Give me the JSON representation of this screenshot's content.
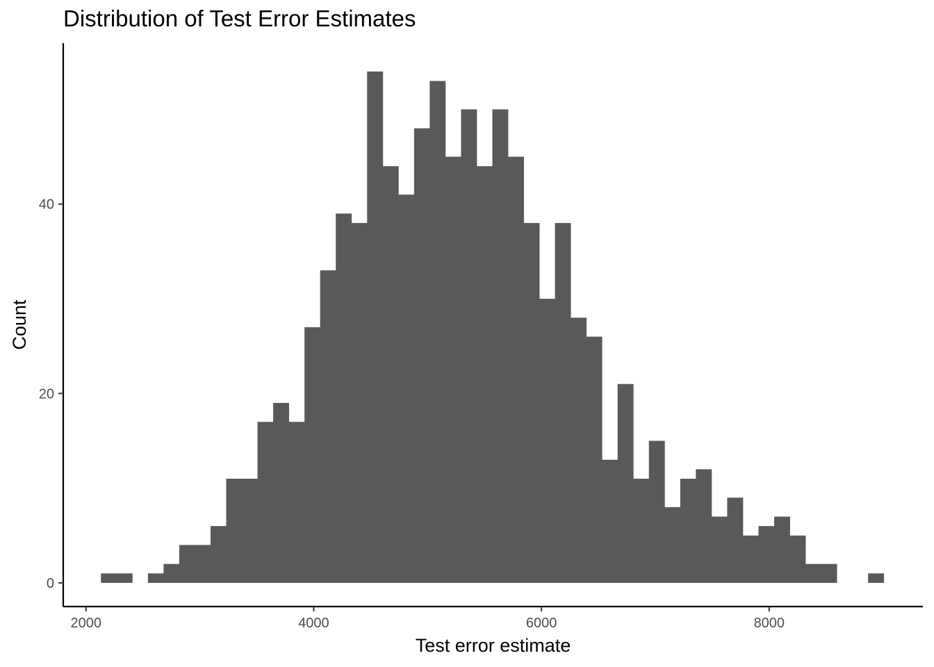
{
  "chart_data": {
    "type": "bar",
    "title": "Distribution of Test Error Estimates",
    "xlabel": "Test error estimate",
    "ylabel": "Count",
    "xlim": [
      1800,
      9350
    ],
    "ylim": [
      -2.5,
      57
    ],
    "x_ticks": [
      2000,
      4000,
      6000,
      8000
    ],
    "y_ticks": [
      0,
      20,
      40
    ],
    "bin_width": 137.5,
    "bins": [
      {
        "x": 2200.0,
        "count": 1
      },
      {
        "x": 2337.5,
        "count": 1
      },
      {
        "x": 2475.0,
        "count": 0
      },
      {
        "x": 2612.5,
        "count": 1
      },
      {
        "x": 2750.0,
        "count": 2
      },
      {
        "x": 2887.5,
        "count": 4
      },
      {
        "x": 3025.0,
        "count": 4
      },
      {
        "x": 3162.5,
        "count": 6
      },
      {
        "x": 3300.0,
        "count": 11
      },
      {
        "x": 3437.5,
        "count": 11
      },
      {
        "x": 3575.0,
        "count": 17
      },
      {
        "x": 3712.5,
        "count": 19
      },
      {
        "x": 3850.0,
        "count": 17
      },
      {
        "x": 3987.5,
        "count": 27
      },
      {
        "x": 4125.0,
        "count": 33
      },
      {
        "x": 4262.5,
        "count": 39
      },
      {
        "x": 4400.0,
        "count": 38
      },
      {
        "x": 4537.5,
        "count": 54
      },
      {
        "x": 4675.0,
        "count": 44
      },
      {
        "x": 4812.5,
        "count": 41
      },
      {
        "x": 4950.0,
        "count": 48
      },
      {
        "x": 5087.5,
        "count": 53
      },
      {
        "x": 5225.0,
        "count": 45
      },
      {
        "x": 5362.5,
        "count": 50
      },
      {
        "x": 5500.0,
        "count": 44
      },
      {
        "x": 5637.5,
        "count": 50
      },
      {
        "x": 5775.0,
        "count": 45
      },
      {
        "x": 5912.5,
        "count": 38
      },
      {
        "x": 6050.0,
        "count": 30
      },
      {
        "x": 6187.5,
        "count": 38
      },
      {
        "x": 6325.0,
        "count": 28
      },
      {
        "x": 6462.5,
        "count": 26
      },
      {
        "x": 6600.0,
        "count": 13
      },
      {
        "x": 6737.5,
        "count": 21
      },
      {
        "x": 6875.0,
        "count": 11
      },
      {
        "x": 7012.5,
        "count": 15
      },
      {
        "x": 7150.0,
        "count": 8
      },
      {
        "x": 7287.5,
        "count": 11
      },
      {
        "x": 7425.0,
        "count": 12
      },
      {
        "x": 7562.5,
        "count": 7
      },
      {
        "x": 7700.0,
        "count": 9
      },
      {
        "x": 7837.5,
        "count": 5
      },
      {
        "x": 7975.0,
        "count": 6
      },
      {
        "x": 8112.5,
        "count": 7
      },
      {
        "x": 8250.0,
        "count": 5
      },
      {
        "x": 8387.5,
        "count": 2
      },
      {
        "x": 8525.0,
        "count": 2
      },
      {
        "x": 8662.5,
        "count": 0
      },
      {
        "x": 8800.0,
        "count": 0
      },
      {
        "x": 8937.5,
        "count": 1
      }
    ],
    "bar_color": "#595959",
    "axis_color": "#000000",
    "grid": false,
    "legend": "none"
  }
}
